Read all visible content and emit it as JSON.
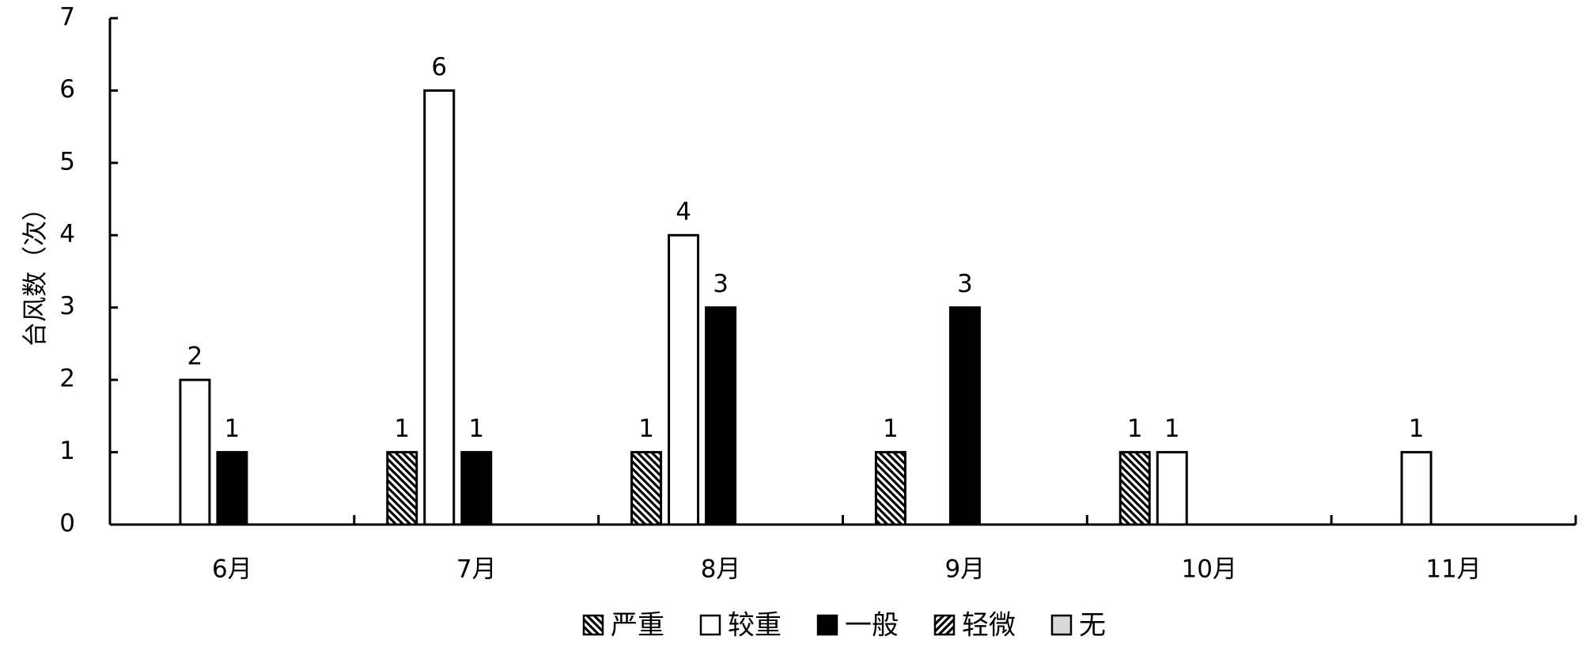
{
  "chart_data": {
    "type": "bar",
    "categories": [
      "6月",
      "7月",
      "8月",
      "9月",
      "10月",
      "11月"
    ],
    "ylabel": "台风数（次）",
    "xlabel": "",
    "ylim": [
      0,
      7
    ],
    "yticks": [
      0,
      1,
      2,
      3,
      4,
      5,
      6,
      7
    ],
    "grid": false,
    "legend_position": "bottom",
    "series": [
      {
        "name": "严重",
        "values": [
          0,
          1,
          1,
          1,
          1,
          0
        ],
        "pattern": "diag-down",
        "color": "#000000"
      },
      {
        "name": "较重",
        "values": [
          2,
          6,
          4,
          0,
          1,
          1
        ],
        "pattern": "white",
        "color": "#ffffff"
      },
      {
        "name": "一般",
        "values": [
          1,
          1,
          3,
          3,
          0,
          0
        ],
        "pattern": "solid",
        "color": "#000000"
      },
      {
        "name": "轻微",
        "values": [
          0,
          0,
          0,
          0,
          0,
          0
        ],
        "pattern": "diag-up",
        "color": "#000000"
      },
      {
        "name": "无",
        "values": [
          0,
          0,
          0,
          0,
          0,
          0
        ],
        "pattern": "gray",
        "color": "#d9d9d9"
      }
    ]
  }
}
